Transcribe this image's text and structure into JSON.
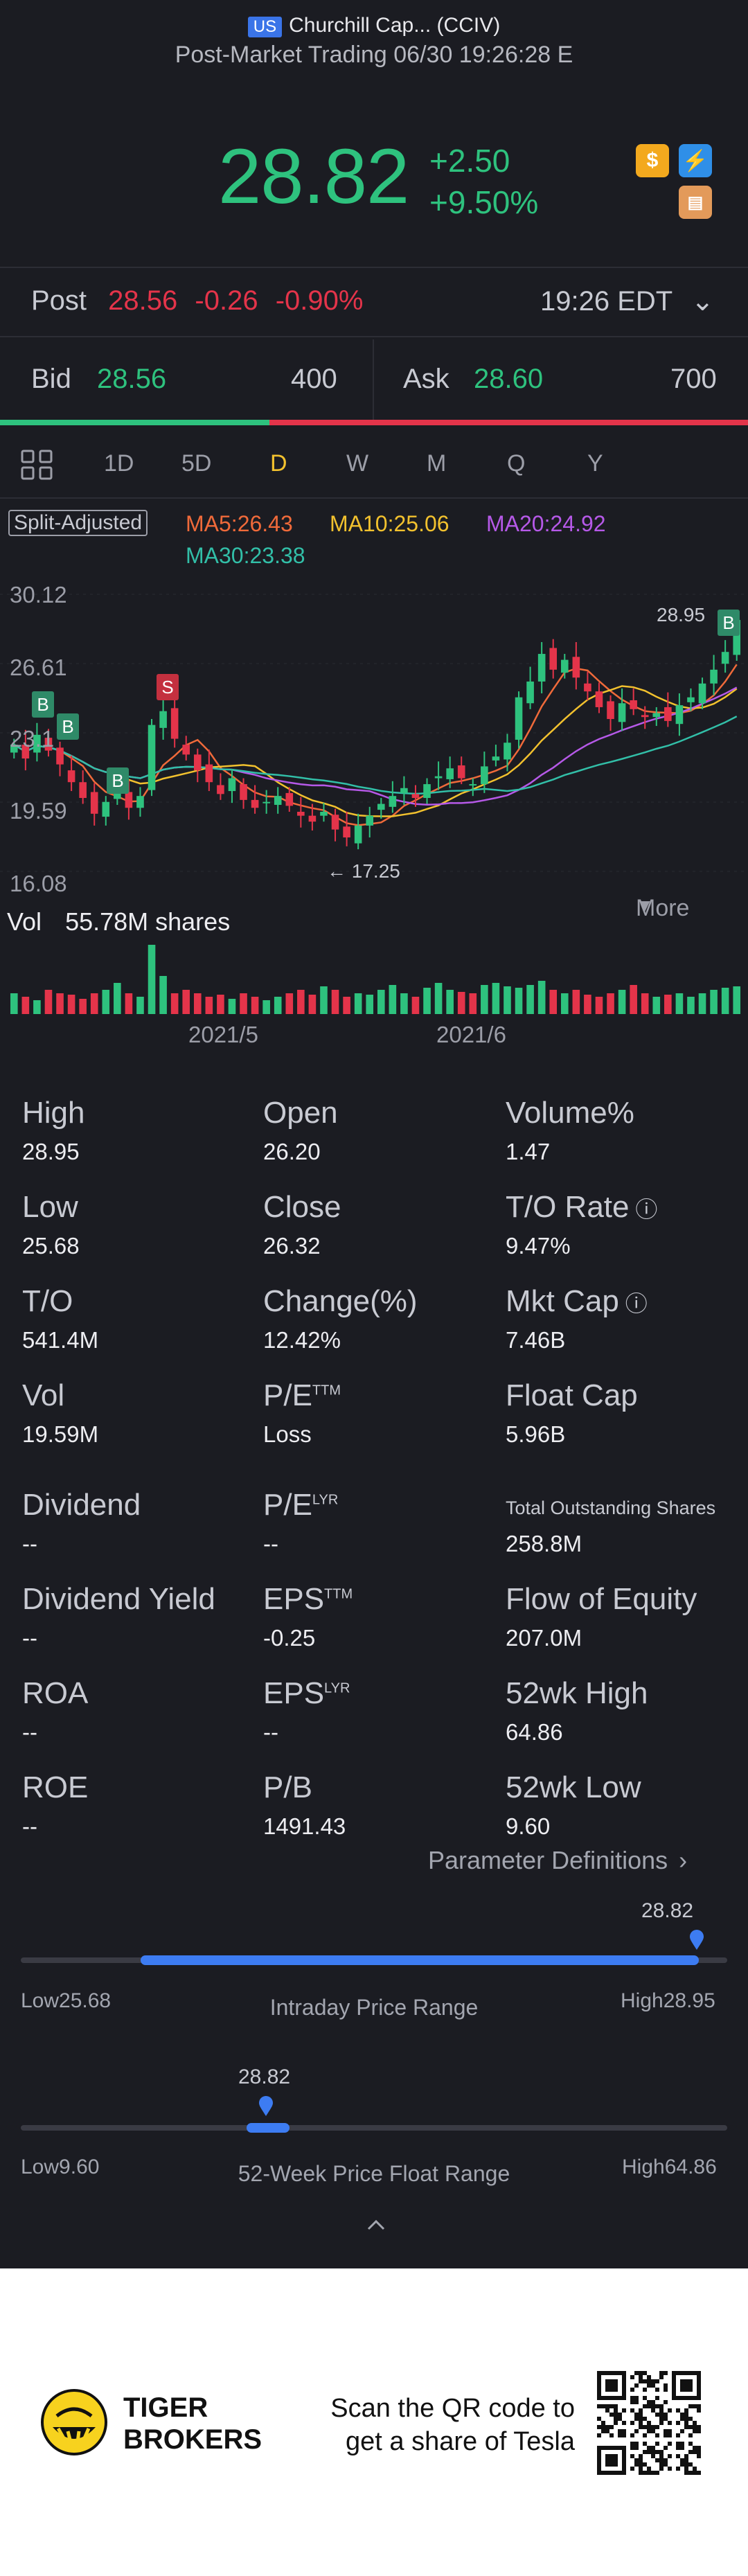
{
  "header": {
    "market_badge": "US",
    "stock_name": "Churchill Cap... (CCIV)",
    "subtitle": "Post-Market Trading 06/30 19:26:28 E"
  },
  "quote": {
    "price": "28.82",
    "change": "+2.50",
    "change_pct": "+9.50%",
    "icons": [
      "dollar-icon",
      "lightning-icon",
      "document-icon"
    ]
  },
  "post": {
    "label": "Post",
    "price": "28.56",
    "change": "-0.26",
    "change_pct": "-0.90%",
    "time": "19:26 EDT"
  },
  "bidask": {
    "bid_label": "Bid",
    "bid_price": "28.56",
    "bid_size": "400",
    "ask_label": "Ask",
    "ask_price": "28.60",
    "ask_size": "700",
    "bid_fraction": 0.36
  },
  "tabs": [
    "1D",
    "5D",
    "D",
    "W",
    "M",
    "Q",
    "Y"
  ],
  "tabs_active": "D",
  "tabs_more": "More",
  "chart": {
    "adjust_label": "Split-Adjusted",
    "ma5": "MA5:26.43",
    "ma10": "MA10:25.06",
    "ma20": "MA20:24.92",
    "ma30": "MA30:23.38",
    "y_ticks": [
      "30.12",
      "26.61",
      "23.1",
      "19.59",
      "16.08"
    ],
    "high_marker": "28.95",
    "low_marker": "← 17.25",
    "signal_s": "S",
    "signal_b": "B",
    "vol_label": "Vol",
    "vol_value": "55.78M shares",
    "x_labels": [
      "2021/5",
      "2021/6"
    ],
    "colors": {
      "up": "#2ec27e",
      "down": "#e4344a",
      "ma5": "#f06a3a",
      "ma10": "#f2c12e",
      "ma20": "#b659e8",
      "ma30": "#32bfa8"
    }
  },
  "chart_data": {
    "type": "candlestick",
    "ylim": [
      16.08,
      30.12
    ],
    "closes": [
      22.5,
      21.8,
      23.0,
      22.2,
      21.5,
      20.6,
      19.8,
      19.0,
      19.6,
      20.4,
      19.3,
      19.9,
      23.5,
      24.2,
      22.8,
      22.0,
      21.2,
      20.6,
      20.0,
      20.8,
      19.7,
      19.3,
      19.6,
      19.9,
      19.4,
      18.9,
      18.6,
      19.1,
      18.2,
      17.8,
      18.4,
      18.9,
      19.5,
      19.9,
      20.3,
      19.8,
      20.5,
      20.9,
      21.3,
      20.8,
      20.5,
      21.4,
      21.9,
      22.6,
      24.9,
      25.7,
      27.1,
      26.3,
      26.8,
      25.9,
      25.2,
      24.4,
      23.8,
      24.6,
      24.3,
      23.9,
      24.1,
      23.7,
      24.5,
      24.9,
      25.6,
      26.3,
      27.2,
      28.82
    ],
    "volume_relative": [
      0.3,
      0.25,
      0.2,
      0.35,
      0.3,
      0.28,
      0.22,
      0.3,
      0.35,
      0.45,
      0.3,
      0.25,
      1.0,
      0.55,
      0.3,
      0.35,
      0.3,
      0.25,
      0.28,
      0.22,
      0.3,
      0.25,
      0.2,
      0.25,
      0.3,
      0.35,
      0.28,
      0.4,
      0.35,
      0.25,
      0.3,
      0.28,
      0.35,
      0.42,
      0.3,
      0.25,
      0.38,
      0.45,
      0.35,
      0.32,
      0.3,
      0.42,
      0.45,
      0.4,
      0.38,
      0.42,
      0.48,
      0.35,
      0.3,
      0.35,
      0.28,
      0.25,
      0.3,
      0.35,
      0.42,
      0.3,
      0.25,
      0.28,
      0.3,
      0.25,
      0.3,
      0.35,
      0.38,
      0.4
    ]
  },
  "stats": [
    {
      "label": "High",
      "value": "28.95"
    },
    {
      "label": "Open",
      "value": "26.20"
    },
    {
      "label": "Volume%",
      "value": "1.47"
    },
    {
      "label": "Low",
      "value": "25.68"
    },
    {
      "label": "Close",
      "value": "26.32"
    },
    {
      "label": "T/O Rate",
      "value": "9.47%"
    },
    {
      "label": "T/O",
      "value": "541.4M"
    },
    {
      "label": "Change(%)",
      "value": "12.42%"
    },
    {
      "label": "Mkt Cap",
      "value": "7.46B"
    },
    {
      "label": "Vol",
      "value": "19.59M"
    },
    {
      "label": "P/E",
      "sup": "TTM",
      "value": "Loss"
    },
    {
      "label": "Float Cap",
      "value": "5.96B"
    },
    {
      "label": "Dividend",
      "value": "--"
    },
    {
      "label": "P/E",
      "sup": "LYR",
      "value": "--"
    },
    {
      "label": "Total Outstanding Shares",
      "value": "258.8M"
    },
    {
      "label": "Dividend Yield",
      "value": "--"
    },
    {
      "label": "EPS",
      "sup": "TTM",
      "value": "-0.25"
    },
    {
      "label": "Flow of Equity",
      "value": "207.0M"
    },
    {
      "label": "ROA",
      "value": "--"
    },
    {
      "label": "EPS",
      "sup": "LYR",
      "value": "--"
    },
    {
      "label": "52wk High",
      "value": "64.86"
    },
    {
      "label": "ROE",
      "value": "--"
    },
    {
      "label": "P/B",
      "value": "1491.43"
    },
    {
      "label": "52wk Low",
      "value": "9.60"
    }
  ],
  "param_link": "Parameter Definitions",
  "intraday": {
    "current": "28.82",
    "low_label": "Low",
    "low": "25.68",
    "high_label": "High",
    "high": "28.95",
    "title": "Intraday Price Range",
    "fill_start": 0.17,
    "fill_end": 0.96
  },
  "week52": {
    "current": "28.82",
    "low_label": "Low",
    "low": "9.60",
    "high_label": "High",
    "high": "64.86",
    "title": "52-Week Price Float Range",
    "marker": 0.35
  },
  "footer": {
    "brand_line1": "TIGER",
    "brand_line2": "BROKERS",
    "cta_line1": "Scan the QR code to",
    "cta_line2": "get a share of Tesla"
  }
}
